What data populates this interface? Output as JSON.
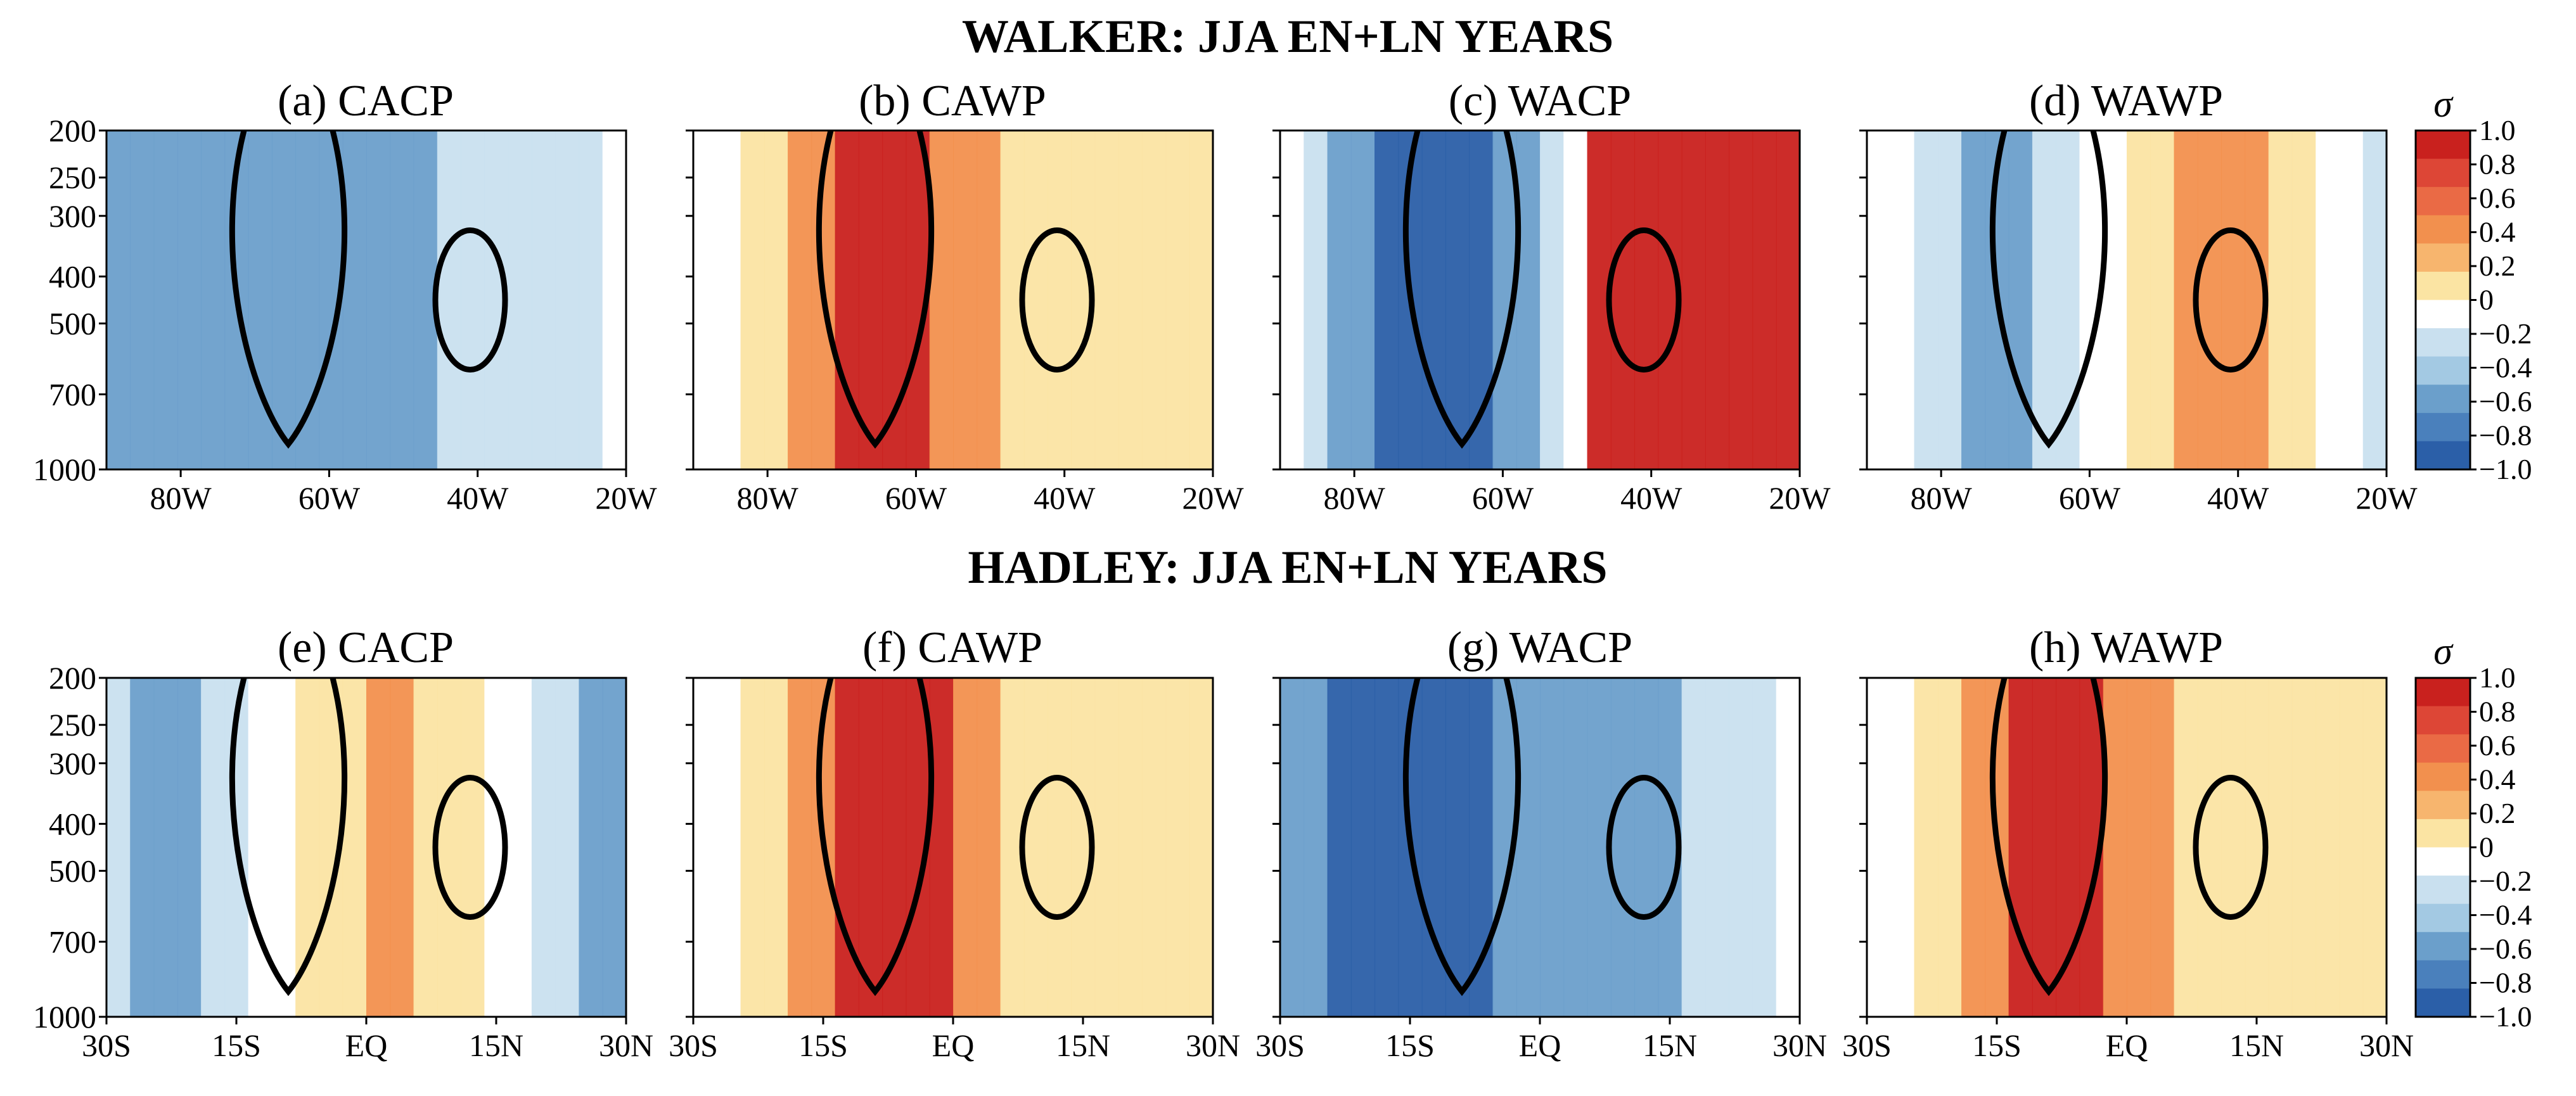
{
  "figure": {
    "rows": [
      {
        "title": "WALKER: JJA EN+LN YEARS",
        "xticks": [
          "80W",
          "60W",
          "40W",
          "20W"
        ],
        "xtick_values": [
          -80,
          -60,
          -40,
          -20
        ],
        "xlim": [
          -90,
          -20
        ],
        "panels": [
          {
            "title": "(a) CACP",
            "dominant": "negative",
            "strength": 0.65
          },
          {
            "title": "(b) CAWP",
            "dominant": "positive",
            "strength": 0.55
          },
          {
            "title": "(c) WACP",
            "dominant": "dipole",
            "strength": 1.0
          },
          {
            "title": "(d) WAWP",
            "dominant": "mixed",
            "strength": 0.6
          }
        ]
      },
      {
        "title": "HADLEY: JJA EN+LN YEARS",
        "xticks": [
          "30S",
          "15S",
          "EQ",
          "15N",
          "30N"
        ],
        "xtick_values": [
          -30,
          -15,
          0,
          15,
          30
        ],
        "xlim": [
          -30,
          30
        ],
        "panels": [
          {
            "title": "(e) CACP",
            "dominant": "mixed",
            "strength": 0.55
          },
          {
            "title": "(f) CAWP",
            "dominant": "positive",
            "strength": 0.6
          },
          {
            "title": "(g) WACP",
            "dominant": "negative",
            "strength": 0.8
          },
          {
            "title": "(h) WAWP",
            "dominant": "positive",
            "strength": 0.55
          }
        ]
      }
    ],
    "yticks": [
      "200",
      "250",
      "300",
      "400",
      "500",
      "700",
      "1000"
    ],
    "ytick_values": [
      200,
      250,
      300,
      400,
      500,
      700,
      1000
    ],
    "ylim": [
      1000,
      200
    ],
    "colorbar": {
      "symbol": "σ",
      "ticks": [
        "1.0",
        "0.8",
        "0.6",
        "0.4",
        "0.2",
        "0",
        "−0.2",
        "−0.4",
        "−0.6",
        "−0.8",
        "−1.0"
      ],
      "tick_values": [
        1.0,
        0.8,
        0.6,
        0.4,
        0.2,
        0,
        -0.2,
        -0.4,
        -0.6,
        -0.8,
        -1.0
      ]
    },
    "colors": {
      "neg_strong": "#2b5fa8",
      "neg_mid": "#6b9fcb",
      "neg_light": "#c9e0ef",
      "neutral": "#ffffff",
      "pos_light": "#fbe4a3",
      "pos_mid": "#f2904e",
      "pos_strong": "#c9211e"
    }
  },
  "chart_data": [
    {
      "type": "heatmap",
      "title": "(a) CACP",
      "xlim": [
        -90,
        -20
      ],
      "ylim": [
        1000,
        200
      ],
      "x_ticks": [
        "80W",
        "60W",
        "40W",
        "20W"
      ],
      "y_ticks": [
        "200",
        "250",
        "300",
        "400",
        "500",
        "700",
        "1000"
      ],
      "value_range": [
        -1.0,
        1.0
      ]
    },
    {
      "type": "heatmap",
      "title": "(b) CAWP",
      "xlim": [
        -90,
        -20
      ],
      "ylim": [
        1000,
        200
      ],
      "x_ticks": [
        "80W",
        "60W",
        "40W",
        "20W"
      ],
      "y_ticks": [
        "200",
        "250",
        "300",
        "400",
        "500",
        "700",
        "1000"
      ],
      "value_range": [
        -1.0,
        1.0
      ]
    },
    {
      "type": "heatmap",
      "title": "(c) WACP",
      "xlim": [
        -90,
        -20
      ],
      "ylim": [
        1000,
        200
      ],
      "x_ticks": [
        "80W",
        "60W",
        "40W",
        "20W"
      ],
      "y_ticks": [
        "200",
        "250",
        "300",
        "400",
        "500",
        "700",
        "1000"
      ],
      "value_range": [
        -1.0,
        1.0
      ]
    },
    {
      "type": "heatmap",
      "title": "(d) WAWP",
      "xlim": [
        -90,
        -20
      ],
      "ylim": [
        1000,
        200
      ],
      "x_ticks": [
        "80W",
        "60W",
        "40W",
        "20W"
      ],
      "y_ticks": [
        "200",
        "250",
        "300",
        "400",
        "500",
        "700",
        "1000"
      ],
      "value_range": [
        -1.0,
        1.0
      ]
    },
    {
      "type": "heatmap",
      "title": "(e) CACP",
      "xlim": [
        -30,
        30
      ],
      "ylim": [
        1000,
        200
      ],
      "x_ticks": [
        "30S",
        "15S",
        "EQ",
        "15N",
        "30N"
      ],
      "y_ticks": [
        "200",
        "250",
        "300",
        "400",
        "500",
        "700",
        "1000"
      ],
      "value_range": [
        -1.0,
        1.0
      ]
    },
    {
      "type": "heatmap",
      "title": "(f) CAWP",
      "xlim": [
        -30,
        30
      ],
      "ylim": [
        1000,
        200
      ],
      "x_ticks": [
        "30S",
        "15S",
        "EQ",
        "15N",
        "30N"
      ],
      "y_ticks": [
        "200",
        "250",
        "300",
        "400",
        "500",
        "700",
        "1000"
      ],
      "value_range": [
        -1.0,
        1.0
      ]
    },
    {
      "type": "heatmap",
      "title": "(g) WACP",
      "xlim": [
        -30,
        30
      ],
      "ylim": [
        1000,
        200
      ],
      "x_ticks": [
        "30S",
        "15S",
        "EQ",
        "15N",
        "30N"
      ],
      "y_ticks": [
        "200",
        "250",
        "300",
        "400",
        "500",
        "700",
        "1000"
      ],
      "value_range": [
        -1.0,
        1.0
      ]
    },
    {
      "type": "heatmap",
      "title": "(h) WAWP",
      "xlim": [
        -30,
        30
      ],
      "ylim": [
        1000,
        200
      ],
      "x_ticks": [
        "30S",
        "15S",
        "EQ",
        "15N",
        "30N"
      ],
      "y_ticks": [
        "200",
        "250",
        "300",
        "400",
        "500",
        "700",
        "1000"
      ],
      "value_range": [
        -1.0,
        1.0
      ]
    }
  ]
}
